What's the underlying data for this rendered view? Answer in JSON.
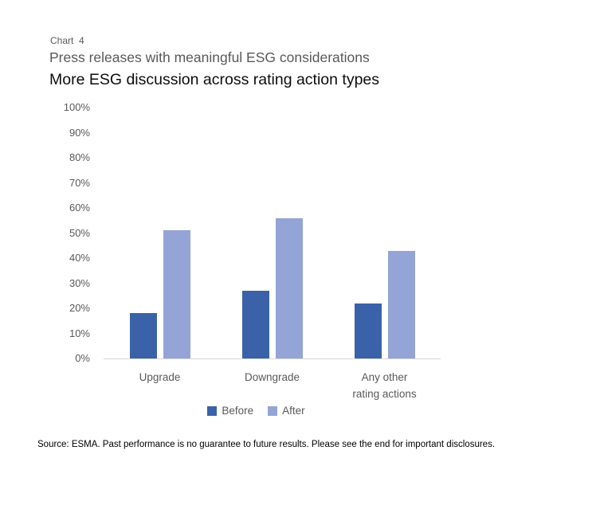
{
  "header": {
    "chart_number": "Chart  4",
    "subtitle": "Press releases with meaningful ESG considerations",
    "title": "More ESG discussion across rating action types"
  },
  "chart_data": {
    "type": "bar",
    "categories": [
      "Upgrade",
      "Downgrade",
      "Any other\nrating actions"
    ],
    "series": [
      {
        "name": "Before",
        "color": "#3B62A9",
        "values": [
          18,
          27,
          22
        ]
      },
      {
        "name": "After",
        "color": "#95A4D6",
        "values": [
          51,
          56,
          43
        ]
      }
    ],
    "ylabel": "",
    "xlabel": "",
    "ylim": [
      0,
      100
    ],
    "yticks": [
      {
        "value": 100,
        "label": "100%"
      },
      {
        "value": 90,
        "label": "90%"
      },
      {
        "value": 80,
        "label": "80%"
      },
      {
        "value": 70,
        "label": "70%"
      },
      {
        "value": 60,
        "label": "60%"
      },
      {
        "value": 50,
        "label": "50%"
      },
      {
        "value": 40,
        "label": "40%"
      },
      {
        "value": 30,
        "label": "30%"
      },
      {
        "value": 20,
        "label": "20%"
      },
      {
        "value": 10,
        "label": "10%"
      },
      {
        "value": 0,
        "label": "0%"
      }
    ],
    "grid": false,
    "legend_position": "bottom",
    "axis_color": "#D9D9D9",
    "label_color": "#595959"
  },
  "footer": {
    "source": "Source: ESMA. Past performance is no guarantee to future results. Please see the end for important disclosures."
  }
}
